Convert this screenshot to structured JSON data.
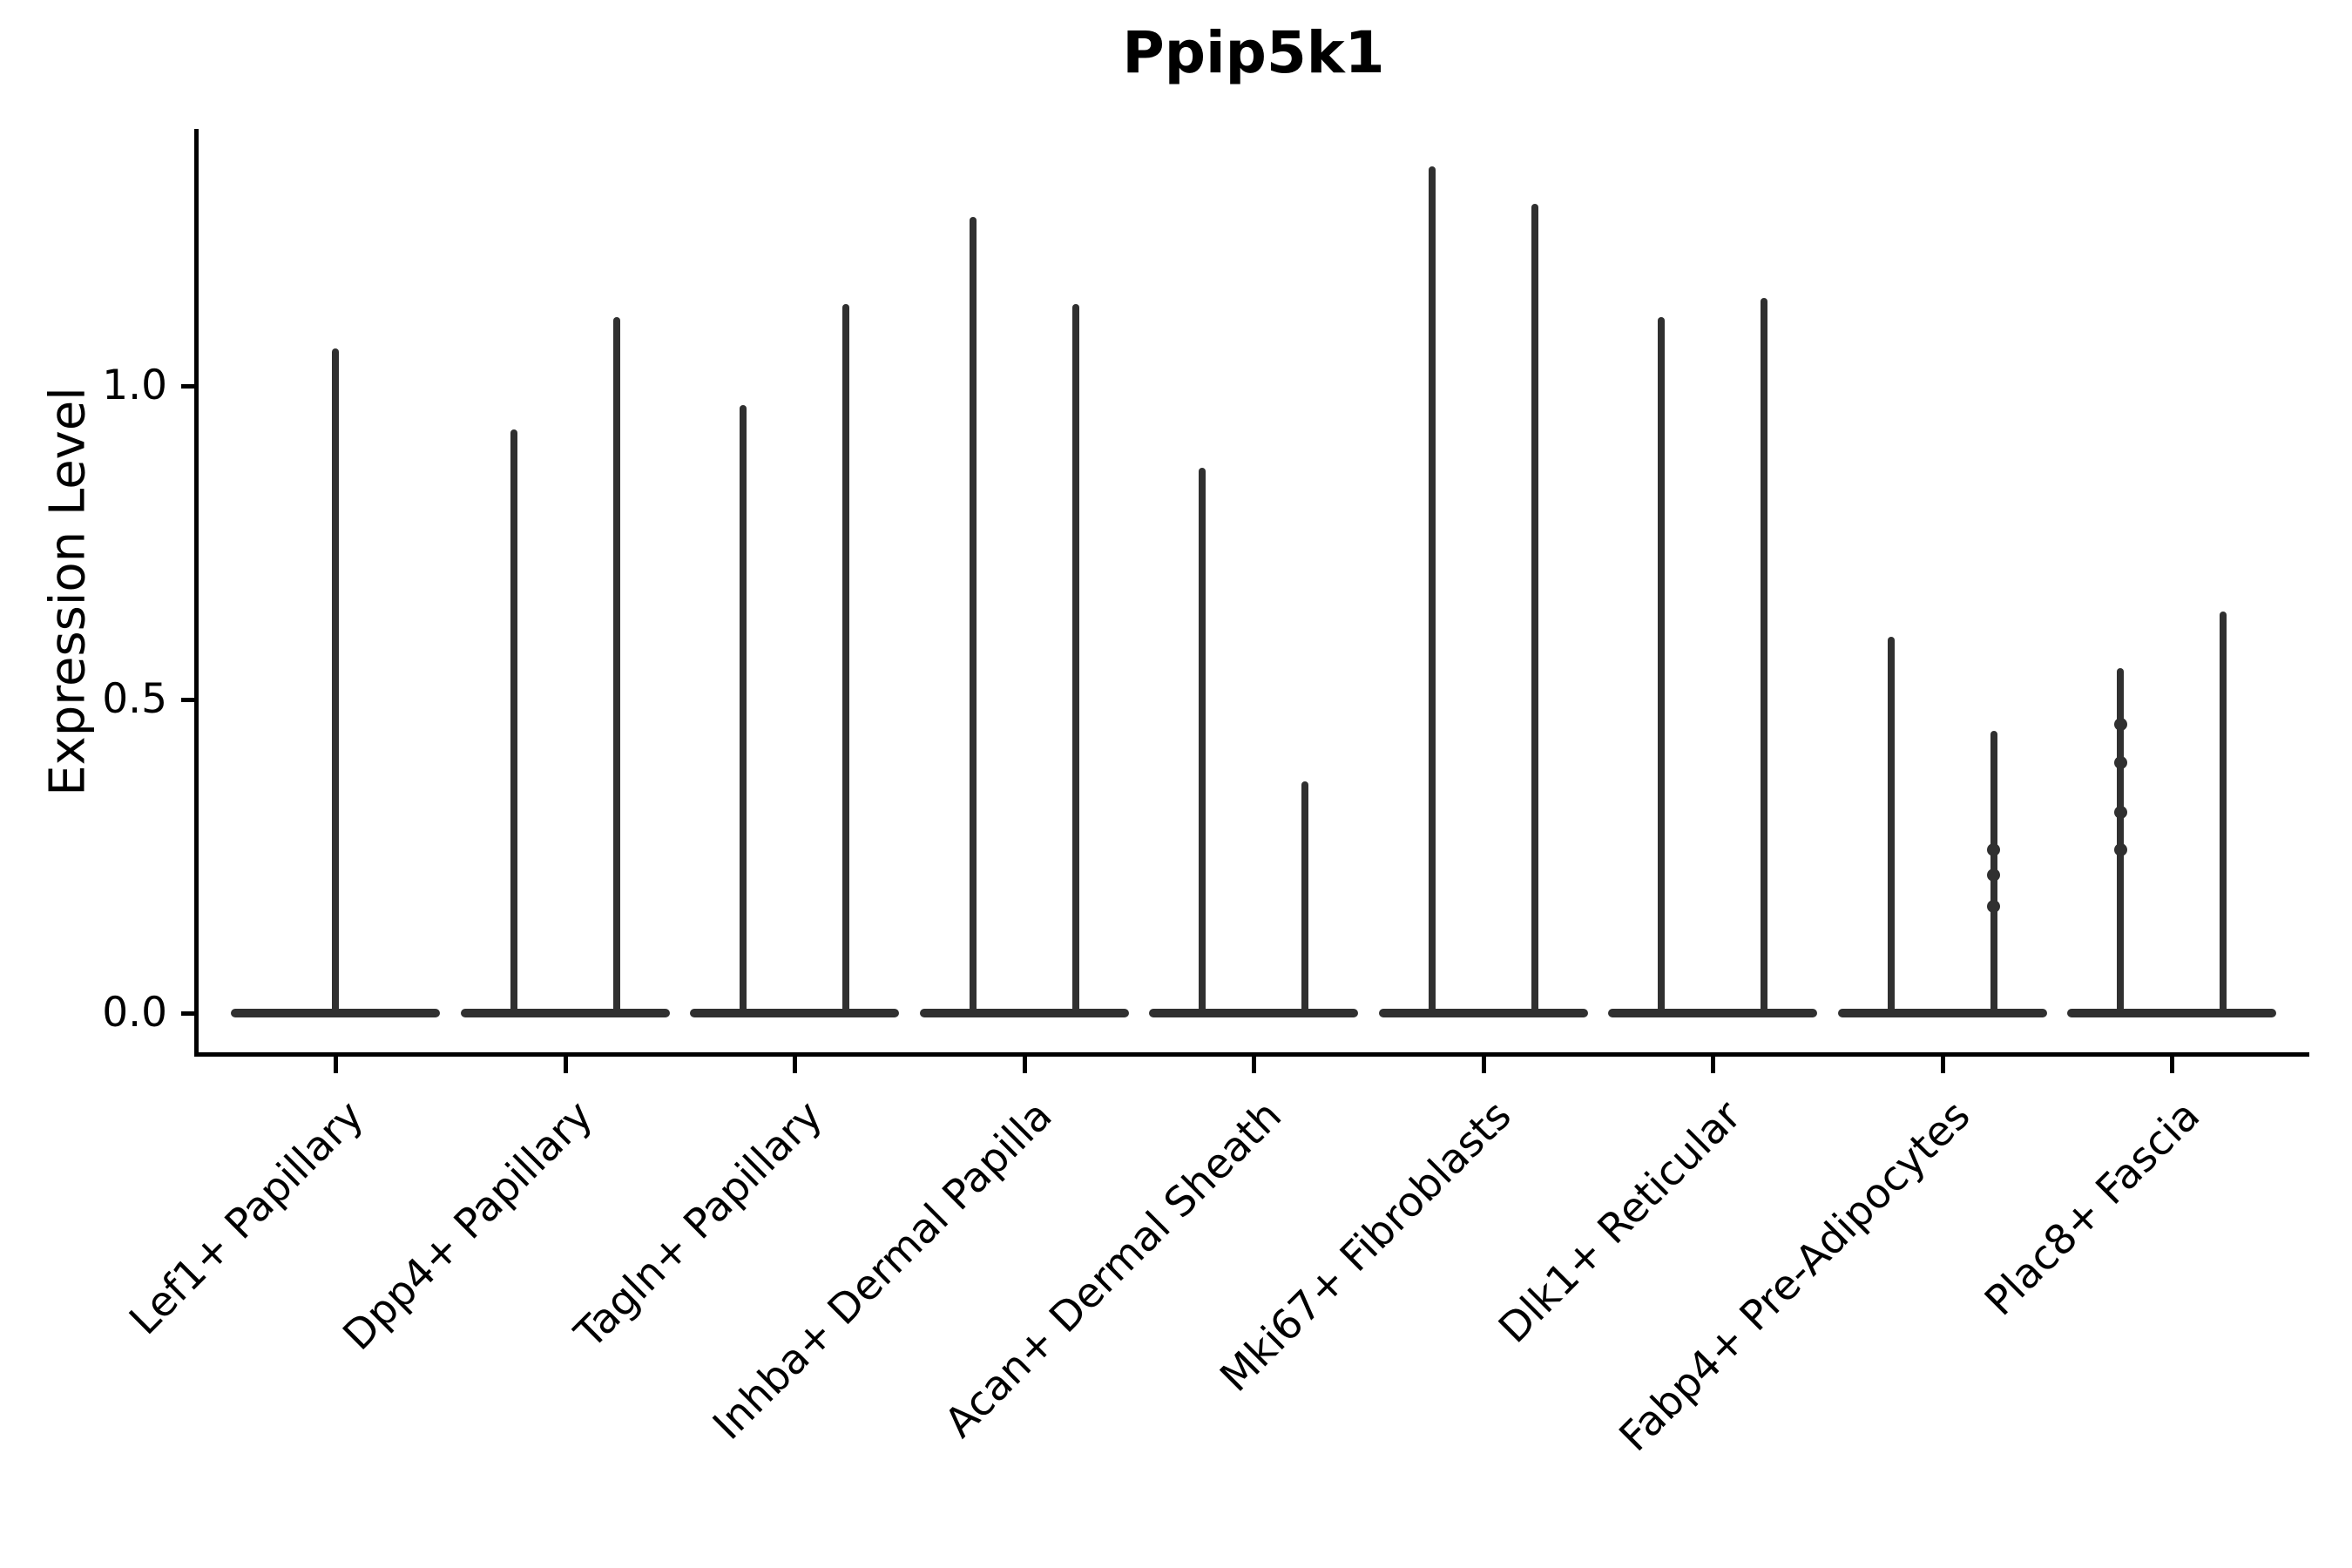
{
  "figure": {
    "background": "#ffffff"
  },
  "chart_data": {
    "type": "violin",
    "title": "Ppip5k1",
    "xlabel": "",
    "ylabel": "Expression Level",
    "ytick_labels": [
      "0.0",
      "0.5",
      "1.0"
    ],
    "ytick_values": [
      0.0,
      0.5,
      1.0
    ],
    "ylim": [
      -0.065,
      1.41
    ],
    "grid": false,
    "legend": null,
    "violin_color": "#303030",
    "axis_color": "#000000",
    "categories": [
      "Lef1+ Papillary",
      "Dpp4+ Papillary",
      "Tagln+ Papillary",
      "Inhba+ Dermal Papilla",
      "Acan+ Dermal Sheath",
      "Mki67+ Fibroblasts",
      "Dlk1+ Reticular",
      "Fabp4+ Pre-Adipocytes",
      "Plac8+ Fascia"
    ],
    "violins": [
      {
        "category": "Lef1+ Papillary",
        "spikes": [
          {
            "position": "center",
            "max": 1.06,
            "knots": []
          }
        ]
      },
      {
        "category": "Dpp4+ Papillary",
        "spikes": [
          {
            "position": "left",
            "max": 0.93,
            "knots": []
          },
          {
            "position": "right",
            "max": 1.11,
            "knots": []
          }
        ]
      },
      {
        "category": "Tagln+ Papillary",
        "spikes": [
          {
            "position": "left",
            "max": 0.97,
            "knots": []
          },
          {
            "position": "right",
            "max": 1.13,
            "knots": []
          }
        ]
      },
      {
        "category": "Inhba+ Dermal Papilla",
        "spikes": [
          {
            "position": "left",
            "max": 1.27,
            "knots": []
          },
          {
            "position": "right",
            "max": 1.13,
            "knots": []
          }
        ]
      },
      {
        "category": "Acan+ Dermal Sheath",
        "spikes": [
          {
            "position": "left",
            "max": 0.87,
            "knots": []
          },
          {
            "position": "right",
            "max": 0.37,
            "knots": []
          }
        ]
      },
      {
        "category": "Mki67+ Fibroblasts",
        "spikes": [
          {
            "position": "left",
            "max": 1.35,
            "knots": []
          },
          {
            "position": "right",
            "max": 1.29,
            "knots": []
          }
        ]
      },
      {
        "category": "Dlk1+ Reticular",
        "spikes": [
          {
            "position": "left",
            "max": 1.11,
            "knots": []
          },
          {
            "position": "right",
            "max": 1.14,
            "knots": []
          }
        ]
      },
      {
        "category": "Fabp4+ Pre-Adipocytes",
        "spikes": [
          {
            "position": "left",
            "max": 0.6,
            "knots": []
          },
          {
            "position": "right",
            "max": 0.45,
            "knots": [
              0.26,
              0.22,
              0.17
            ]
          }
        ]
      },
      {
        "category": "Plac8+ Fascia",
        "spikes": [
          {
            "position": "left",
            "max": 0.55,
            "knots": [
              0.46,
              0.4,
              0.32,
              0.26
            ]
          },
          {
            "position": "right",
            "max": 0.64,
            "knots": []
          }
        ]
      }
    ],
    "baseline_value": 0.0
  }
}
